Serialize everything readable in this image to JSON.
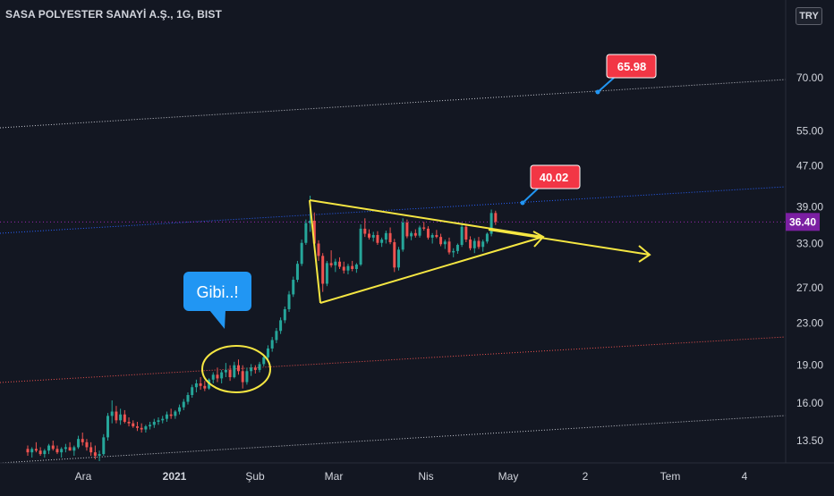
{
  "header": {
    "title": "SASA POLYESTER SANAYİ A.Ş., 1G, BIST",
    "currency": "TRY"
  },
  "chart_data": {
    "type": "candlestick",
    "y_scale": "log",
    "ylim": [
      12.2,
      80
    ],
    "y_ticks": [
      "13.50",
      "16.00",
      "19.00",
      "23.00",
      "27.00",
      "33.00",
      "39.00",
      "47.00",
      "55.00",
      "70.00"
    ],
    "x_ticks": [
      "Ara",
      "2021",
      "Şub",
      "Mar",
      "Nis",
      "May",
      "2",
      "Tem",
      "4"
    ],
    "last_price": "36.40",
    "target_labels": [
      "65.98",
      "40.02"
    ],
    "callout_text": "Gibi..!",
    "candles_ohlc": [
      [
        13.0,
        13.2,
        12.6,
        12.8
      ],
      [
        12.8,
        13.1,
        12.5,
        13.0
      ],
      [
        13.0,
        13.4,
        12.8,
        12.9
      ],
      [
        12.9,
        13.1,
        12.6,
        12.7
      ],
      [
        12.7,
        13.0,
        12.5,
        12.9
      ],
      [
        12.9,
        13.3,
        12.7,
        13.2
      ],
      [
        13.2,
        13.5,
        12.9,
        13.0
      ],
      [
        13.0,
        13.2,
        12.7,
        12.8
      ],
      [
        12.8,
        13.1,
        12.5,
        13.0
      ],
      [
        13.0,
        13.3,
        12.8,
        13.1
      ],
      [
        13.1,
        13.4,
        12.9,
        12.9
      ],
      [
        12.9,
        13.2,
        12.6,
        13.1
      ],
      [
        13.1,
        13.8,
        13.0,
        13.6
      ],
      [
        13.6,
        14.0,
        13.2,
        13.4
      ],
      [
        13.4,
        13.6,
        12.9,
        13.1
      ],
      [
        13.1,
        13.4,
        12.6,
        12.8
      ],
      [
        12.8,
        13.2,
        12.4,
        12.6
      ],
      [
        12.6,
        12.9,
        12.3,
        12.7
      ],
      [
        12.7,
        13.9,
        12.6,
        13.7
      ],
      [
        13.7,
        15.3,
        13.5,
        15.1
      ],
      [
        15.1,
        16.2,
        14.6,
        15.4
      ],
      [
        15.4,
        15.8,
        14.6,
        14.8
      ],
      [
        14.8,
        15.6,
        14.5,
        15.2
      ],
      [
        15.2,
        15.5,
        14.6,
        14.7
      ],
      [
        14.7,
        15.0,
        14.4,
        14.6
      ],
      [
        14.6,
        14.8,
        14.3,
        14.4
      ],
      [
        14.4,
        14.7,
        14.1,
        14.3
      ],
      [
        14.3,
        14.6,
        14.0,
        14.2
      ],
      [
        14.2,
        14.5,
        14.0,
        14.4
      ],
      [
        14.4,
        14.7,
        14.2,
        14.5
      ],
      [
        14.5,
        14.9,
        14.3,
        14.7
      ],
      [
        14.7,
        15.0,
        14.5,
        14.8
      ],
      [
        14.8,
        15.1,
        14.6,
        14.9
      ],
      [
        14.9,
        15.4,
        14.7,
        15.2
      ],
      [
        15.2,
        15.6,
        14.9,
        15.1
      ],
      [
        15.1,
        15.5,
        14.9,
        15.4
      ],
      [
        15.4,
        15.9,
        15.2,
        15.7
      ],
      [
        15.7,
        16.3,
        15.5,
        16.1
      ],
      [
        16.1,
        16.8,
        15.9,
        16.6
      ],
      [
        16.6,
        17.4,
        16.4,
        17.2
      ],
      [
        17.2,
        17.8,
        16.8,
        17.5
      ],
      [
        17.5,
        18.0,
        17.0,
        17.3
      ],
      [
        17.3,
        17.7,
        16.9,
        17.1
      ],
      [
        17.1,
        17.9,
        17.0,
        17.8
      ],
      [
        17.8,
        18.4,
        17.5,
        18.2
      ],
      [
        18.2,
        18.8,
        17.6,
        17.9
      ],
      [
        17.9,
        18.6,
        17.5,
        18.4
      ],
      [
        18.4,
        19.2,
        18.0,
        18.6
      ],
      [
        18.6,
        19.0,
        17.7,
        18.0
      ],
      [
        18.0,
        19.3,
        17.9,
        19.0
      ],
      [
        19.0,
        19.5,
        18.2,
        18.5
      ],
      [
        18.5,
        19.0,
        17.1,
        17.6
      ],
      [
        17.6,
        18.8,
        17.4,
        18.5
      ],
      [
        18.5,
        19.1,
        18.1,
        18.8
      ],
      [
        18.8,
        19.0,
        18.3,
        18.6
      ],
      [
        18.6,
        19.3,
        18.4,
        19.1
      ],
      [
        19.1,
        19.9,
        18.9,
        19.7
      ],
      [
        19.7,
        20.8,
        19.5,
        20.5
      ],
      [
        20.5,
        21.6,
        20.2,
        21.3
      ],
      [
        21.3,
        22.5,
        21.0,
        22.2
      ],
      [
        22.2,
        23.6,
        21.9,
        23.3
      ],
      [
        23.3,
        24.8,
        23.0,
        24.5
      ],
      [
        24.5,
        26.6,
        24.2,
        26.2
      ],
      [
        26.2,
        28.4,
        25.9,
        28.0
      ],
      [
        28.0,
        30.5,
        27.7,
        30.1
      ],
      [
        30.1,
        33.6,
        29.8,
        33.1
      ],
      [
        33.1,
        36.8,
        32.8,
        36.2
      ],
      [
        36.2,
        41.0,
        34.8,
        36.6
      ],
      [
        36.6,
        38.0,
        32.5,
        33.0
      ],
      [
        33.0,
        33.5,
        30.5,
        31.2
      ],
      [
        31.2,
        31.6,
        26.5,
        27.5
      ],
      [
        27.5,
        30.5,
        27.2,
        30.2
      ],
      [
        30.2,
        32.0,
        29.6,
        29.9
      ],
      [
        29.9,
        30.8,
        29.0,
        30.4
      ],
      [
        30.4,
        31.0,
        29.4,
        29.7
      ],
      [
        29.7,
        30.4,
        28.8,
        29.2
      ],
      [
        29.2,
        30.1,
        28.7,
        29.8
      ],
      [
        29.8,
        30.5,
        29.1,
        29.4
      ],
      [
        29.4,
        30.2,
        28.9,
        30.0
      ],
      [
        30.0,
        36.0,
        29.8,
        35.3
      ],
      [
        35.3,
        37.0,
        34.0,
        34.5
      ],
      [
        34.5,
        35.2,
        33.6,
        33.9
      ],
      [
        33.9,
        34.8,
        33.3,
        34.3
      ],
      [
        34.3,
        34.9,
        32.8,
        33.1
      ],
      [
        33.1,
        33.9,
        32.5,
        33.6
      ],
      [
        33.6,
        35.0,
        33.0,
        34.6
      ],
      [
        34.6,
        35.5,
        32.9,
        33.2
      ],
      [
        33.2,
        33.7,
        29.0,
        29.6
      ],
      [
        29.6,
        32.5,
        29.2,
        32.1
      ],
      [
        32.1,
        37.0,
        31.8,
        36.3
      ],
      [
        36.3,
        36.8,
        33.8,
        34.1
      ],
      [
        34.1,
        34.9,
        33.5,
        34.6
      ],
      [
        34.6,
        35.2,
        33.9,
        34.2
      ],
      [
        34.2,
        35.8,
        33.9,
        35.5
      ],
      [
        35.5,
        36.4,
        35.0,
        35.3
      ],
      [
        35.3,
        35.7,
        33.6,
        33.9
      ],
      [
        33.9,
        34.6,
        33.0,
        34.3
      ],
      [
        34.3,
        35.1,
        33.8,
        34.0
      ],
      [
        34.0,
        34.5,
        32.6,
        32.9
      ],
      [
        32.9,
        33.6,
        32.2,
        33.3
      ],
      [
        33.3,
        33.9,
        31.4,
        31.7
      ],
      [
        31.7,
        32.3,
        31.0,
        31.9
      ],
      [
        31.9,
        33.0,
        31.5,
        32.8
      ],
      [
        32.8,
        36.2,
        32.5,
        35.6
      ],
      [
        35.6,
        36.1,
        33.2,
        33.6
      ],
      [
        33.6,
        34.1,
        32.0,
        32.3
      ],
      [
        32.3,
        33.8,
        31.6,
        33.4
      ],
      [
        33.4,
        34.0,
        32.2,
        32.5
      ],
      [
        32.5,
        33.6,
        31.8,
        33.3
      ],
      [
        33.3,
        34.7,
        33.0,
        34.5
      ],
      [
        34.5,
        38.5,
        34.1,
        37.9
      ],
      [
        37.9,
        38.3,
        35.9,
        36.4
      ]
    ]
  },
  "style": {
    "background": "#131722",
    "up_color": "#26a69a",
    "down_color": "#ef5350",
    "triangle_color": "#f5e642",
    "callout_color": "#2196f3",
    "price_label_color": "#7b1fa2",
    "target_label_color": "#f23645"
  }
}
